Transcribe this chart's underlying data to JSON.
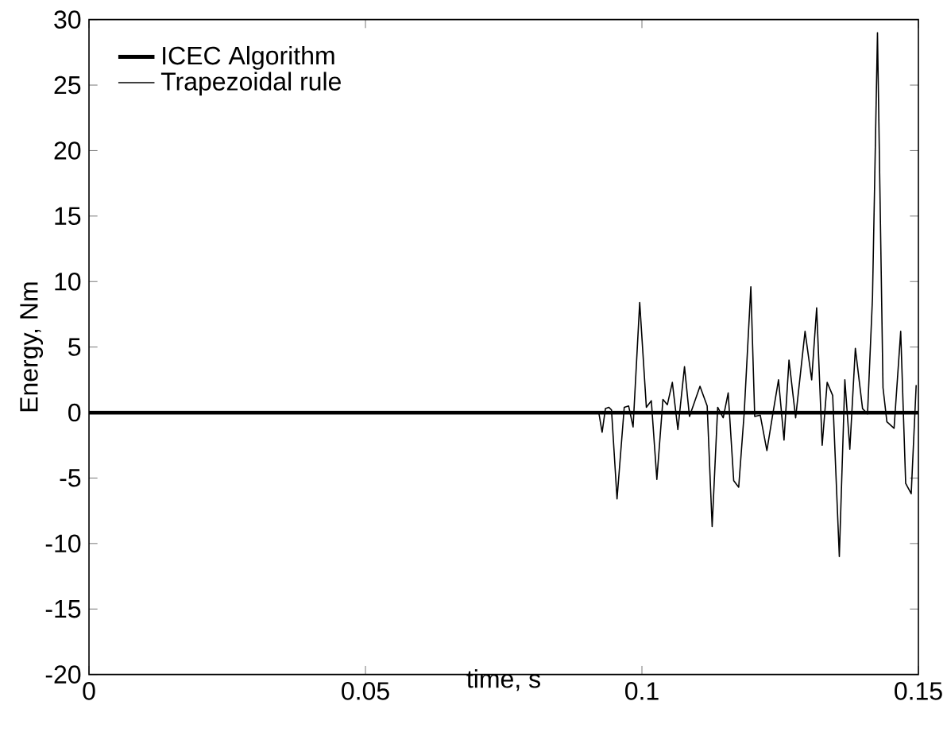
{
  "chart_data": {
    "type": "line",
    "xlabel": "time, s",
    "ylabel": "Energy, Nm",
    "xlim": [
      0,
      0.15
    ],
    "ylim": [
      -20,
      30
    ],
    "xticks": [
      0,
      0.05,
      0.1,
      0.15
    ],
    "yticks": [
      -20,
      -15,
      -10,
      -5,
      0,
      5,
      10,
      15,
      20,
      25,
      30
    ],
    "grid": false,
    "legend": "top left",
    "marker": "none",
    "line_style": "solid",
    "series": [
      {
        "name": "ICEC Algorithm",
        "color": "#000000",
        "x": [
          0,
          0.15
        ],
        "values": [
          0,
          0
        ]
      },
      {
        "name": "Trapezoidal rule",
        "color": "#000000",
        "x": [
          0,
          0.0922,
          0.0928,
          0.0934,
          0.094,
          0.0945,
          0.0955,
          0.0968,
          0.0976,
          0.0984,
          0.0996,
          0.1008,
          0.1017,
          0.1027,
          0.1038,
          0.1046,
          0.1055,
          0.1065,
          0.1077,
          0.1086,
          0.1105,
          0.1118,
          0.1127,
          0.1137,
          0.1147,
          0.1156,
          0.1166,
          0.1175,
          0.1185,
          0.1197,
          0.1204,
          0.1214,
          0.1226,
          0.1236,
          0.1247,
          0.1257,
          0.1266,
          0.1278,
          0.1295,
          0.1307,
          0.1316,
          0.1326,
          0.1335,
          0.1345,
          0.1357,
          0.1367,
          0.1376,
          0.1386,
          0.1399,
          0.1408,
          0.1417,
          0.1426,
          0.1436,
          0.1443,
          0.1456,
          0.1468,
          0.1477,
          0.1487,
          0.1496
        ],
        "values": [
          0,
          0,
          -1.5,
          0.3,
          0.4,
          0.2,
          -6.6,
          0.4,
          0.5,
          -1.1,
          8.4,
          0.4,
          0.9,
          -5.1,
          1.0,
          0.6,
          2.3,
          -1.3,
          3.5,
          -0.3,
          2.0,
          0.5,
          -8.7,
          0.4,
          -0.4,
          1.5,
          -5.2,
          -5.7,
          0,
          9.6,
          -0.3,
          -0.2,
          -2.9,
          -0.3,
          2.5,
          -2.1,
          4.0,
          -0.4,
          6.2,
          2.5,
          8.0,
          -2.5,
          2.3,
          1.3,
          -11.0,
          2.5,
          -2.8,
          4.9,
          0.3,
          -0.1,
          8.8,
          29.0,
          1.9,
          -0.7,
          -1.2,
          6.2,
          -5.4,
          -6.2,
          2.1
        ]
      }
    ]
  }
}
